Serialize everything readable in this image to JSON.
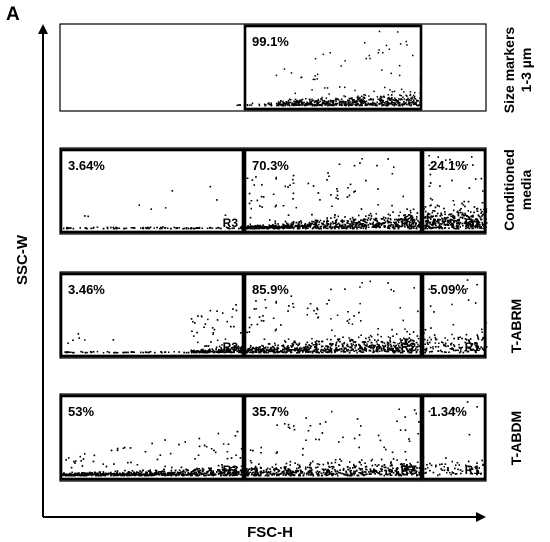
{
  "figure": {
    "panel_letter": "A",
    "y_axis_label": "SSC-W",
    "x_axis_label": "FSC-H"
  },
  "chart_data": {
    "type": "scatter",
    "xlabel": "FSC-H",
    "ylabel": "SSC-W",
    "grid": false,
    "gate_names": [
      "R3",
      "R2",
      "R1"
    ],
    "panels": [
      {
        "name": "Size markers 1-3 µm",
        "label_lines": [
          "Size markers",
          "1-3 µm"
        ],
        "gates": [
          {
            "name": "",
            "percent": "99.1%"
          }
        ]
      },
      {
        "name": "Conditioned media",
        "label_lines": [
          "Conditioned",
          "media"
        ],
        "gates": [
          {
            "name": "R3",
            "percent": "3.64%"
          },
          {
            "name": "R2",
            "percent": "70.3%"
          },
          {
            "name": "R1",
            "percent": "24.1%"
          }
        ]
      },
      {
        "name": "T-ABRM",
        "label_lines": [
          "T-ABRM"
        ],
        "gates": [
          {
            "name": "R3",
            "percent": "3.46%"
          },
          {
            "name": "R2",
            "percent": "85.9%"
          },
          {
            "name": "R1",
            "percent": "5.09%"
          }
        ]
      },
      {
        "name": "T-ABDM",
        "label_lines": [
          "T-ABDM"
        ],
        "gates": [
          {
            "name": "R3",
            "percent": "53%"
          },
          {
            "name": "R2",
            "percent": "35.7%"
          },
          {
            "name": "R1",
            "percent": "1.34%"
          }
        ]
      }
    ]
  }
}
